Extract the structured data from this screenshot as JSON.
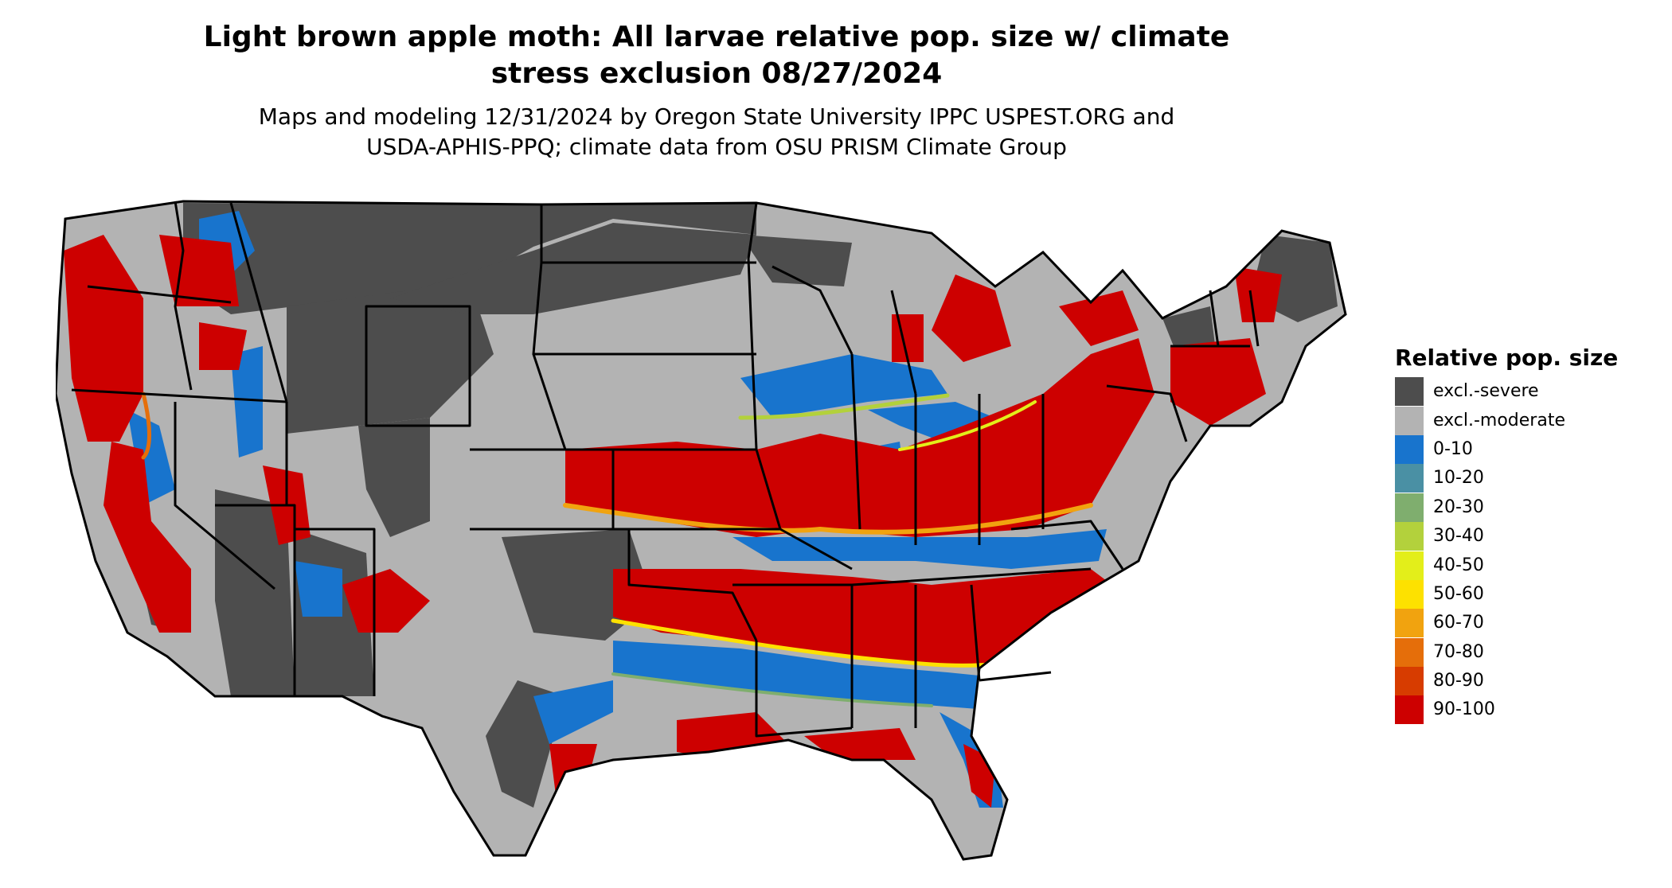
{
  "title": {
    "line1": "Light brown apple moth: All larvae relative pop. size w/ climate",
    "line2": "stress exclusion 08/27/2024"
  },
  "subtitle": {
    "line1": "Maps and modeling 12/31/2024 by Oregon State University IPPC USPEST.ORG and",
    "line2": "USDA-APHIS-PPQ; climate data from OSU PRISM Climate Group"
  },
  "legend": {
    "title": "Relative pop. size",
    "items": [
      {
        "label": "excl.-severe",
        "color": "#4d4d4d"
      },
      {
        "label": "excl.-moderate",
        "color": "#b3b3b3"
      },
      {
        "label": "0-10",
        "color": "#1874cd"
      },
      {
        "label": "10-20",
        "color": "#4a90a4"
      },
      {
        "label": "20-30",
        "color": "#7fae6e"
      },
      {
        "label": "30-40",
        "color": "#b3d13c"
      },
      {
        "label": "40-50",
        "color": "#e3ee1a"
      },
      {
        "label": "50-60",
        "color": "#fde100"
      },
      {
        "label": "60-70",
        "color": "#f1a30f"
      },
      {
        "label": "70-80",
        "color": "#e56e0a"
      },
      {
        "label": "80-90",
        "color": "#d73c00"
      },
      {
        "label": "90-100",
        "color": "#cd0000"
      }
    ]
  },
  "map": {
    "region": "contiguous-united-states",
    "boundary_color": "#000000"
  }
}
